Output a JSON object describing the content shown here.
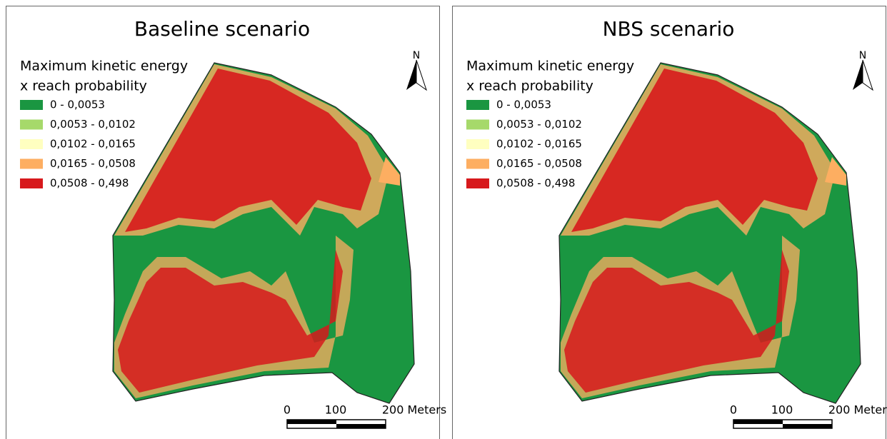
{
  "panels": [
    {
      "title": "Baseline scenario",
      "legend": {
        "title_lines": [
          "Maximum kinetic energy",
          "x reach probability"
        ],
        "items": [
          {
            "label": "0 - 0,0053",
            "color": "#1a9641"
          },
          {
            "label": "0,0053 - 0,0102",
            "color": "#a6d96a"
          },
          {
            "label": "0,0102 - 0,0165",
            "color": "#ffffc0"
          },
          {
            "label": "0,0165 - 0,0508",
            "color": "#fdae61"
          },
          {
            "label": "0,0508 - 0,498",
            "color": "#d7191c"
          }
        ]
      },
      "north": "N",
      "scale": {
        "labels": [
          "0",
          "100",
          "200 Meters"
        ]
      }
    },
    {
      "title": "NBS scenario",
      "legend": {
        "title_lines": [
          "Maximum kinetic energy",
          "x reach probability"
        ],
        "items": [
          {
            "label": "0 - 0,0053",
            "color": "#1a9641"
          },
          {
            "label": "0,0053 - 0,0102",
            "color": "#a6d96a"
          },
          {
            "label": "0,0102 - 0,0165",
            "color": "#ffffc0"
          },
          {
            "label": "0,0165 - 0,0508",
            "color": "#fdae61"
          },
          {
            "label": "0,0508 - 0,498",
            "color": "#d7191c"
          }
        ]
      },
      "north": "N",
      "scale": {
        "labels": [
          "0",
          "100",
          "200 Meters"
        ]
      }
    }
  ]
}
